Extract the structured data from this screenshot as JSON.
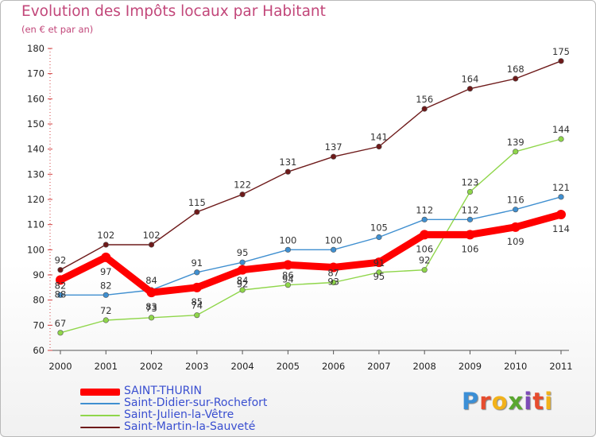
{
  "title": "Evolution des Impôts locaux par Habitant",
  "subtitle": "(en € et par an)",
  "brand": {
    "letters": [
      "P",
      "r",
      "o",
      "x",
      "i",
      "t",
      "i"
    ],
    "colors": [
      "#3b8fd6",
      "#e64c2e",
      "#f2b21a",
      "#5aa72f",
      "#7d4bb8",
      "#e64c2e",
      "#f2b21a"
    ]
  },
  "chart_data": {
    "type": "line",
    "title": "Evolution des Impôts locaux par Habitant",
    "ylabel": "(en € et par an)",
    "xlabel": "",
    "categories": [
      "2000",
      "2001",
      "2002",
      "2003",
      "2004",
      "2005",
      "2006",
      "2007",
      "2008",
      "2009",
      "2010",
      "2011"
    ],
    "ylim": [
      60,
      180
    ],
    "yticks": [
      60,
      70,
      80,
      90,
      100,
      110,
      120,
      130,
      140,
      150,
      160,
      170,
      180
    ],
    "grid": false,
    "series": [
      {
        "name": "SAINT-THURIN",
        "color": "#ff0000",
        "values": [
          88,
          97,
          83,
          85,
          92,
          94,
          93,
          95,
          106,
          106,
          109,
          114
        ]
      },
      {
        "name": "Saint-Didier-sur-Rochefort",
        "color": "#3f8fd0",
        "values": [
          82,
          82,
          84,
          91,
          95,
          100,
          100,
          105,
          112,
          112,
          116,
          121
        ]
      },
      {
        "name": "Saint-Julien-la-Vêtre",
        "color": "#8fd64a",
        "values": [
          67,
          72,
          73,
          74,
          84,
          86,
          87,
          91,
          92,
          123,
          139,
          144
        ]
      },
      {
        "name": "Saint-Martin-la-Sauveté",
        "color": "#6e1a1a",
        "values": [
          92,
          102,
          102,
          115,
          122,
          131,
          137,
          141,
          156,
          164,
          168,
          175
        ]
      }
    ]
  }
}
